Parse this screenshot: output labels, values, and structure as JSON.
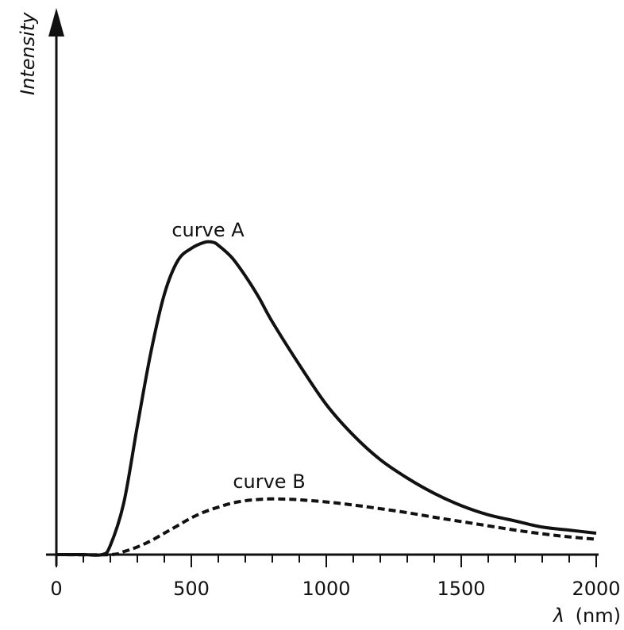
{
  "chart_data": {
    "type": "line",
    "xlabel_symbol": "λ",
    "xlabel_unit": "(nm)",
    "ylabel": "Intensity",
    "xlim": [
      0,
      2000
    ],
    "ylim": [
      0,
      1.0
    ],
    "x_ticks": [
      0,
      500,
      1000,
      1500,
      2000
    ],
    "x_tick_labels": [
      "0",
      "500",
      "1000",
      "1500",
      "2000"
    ],
    "minor_tick_step": 100,
    "grid": false,
    "legend": "none",
    "series": [
      {
        "name": "curve A",
        "style": "solid",
        "x": [
          0,
          100,
          170,
          200,
          250,
          300,
          350,
          400,
          450,
          500,
          550,
          580,
          600,
          650,
          700,
          750,
          800,
          900,
          1000,
          1100,
          1200,
          1300,
          1400,
          1500,
          1600,
          1700,
          1800,
          1900,
          2000
        ],
        "y": [
          0,
          0,
          0,
          0.03,
          0.17,
          0.42,
          0.66,
          0.85,
          0.96,
          1.0,
          1.02,
          1.02,
          1.01,
          0.97,
          0.91,
          0.84,
          0.76,
          0.62,
          0.49,
          0.39,
          0.31,
          0.25,
          0.2,
          0.16,
          0.13,
          0.11,
          0.09,
          0.08,
          0.07
        ]
      },
      {
        "name": "curve B",
        "style": "dashed",
        "x": [
          0,
          200,
          250,
          300,
          350,
          400,
          450,
          500,
          550,
          600,
          650,
          700,
          750,
          800,
          850,
          900,
          1000,
          1100,
          1200,
          1300,
          1400,
          1500,
          1600,
          1700,
          1800,
          1900,
          2000
        ],
        "y": [
          0,
          0,
          0.01,
          0.025,
          0.045,
          0.07,
          0.095,
          0.12,
          0.14,
          0.155,
          0.168,
          0.176,
          0.18,
          0.182,
          0.181,
          0.179,
          0.172,
          0.162,
          0.15,
          0.137,
          0.122,
          0.108,
          0.094,
          0.08,
          0.068,
          0.058,
          0.05
        ]
      }
    ]
  },
  "labels": {
    "curve_a": "curve A",
    "curve_b": "curve B"
  }
}
